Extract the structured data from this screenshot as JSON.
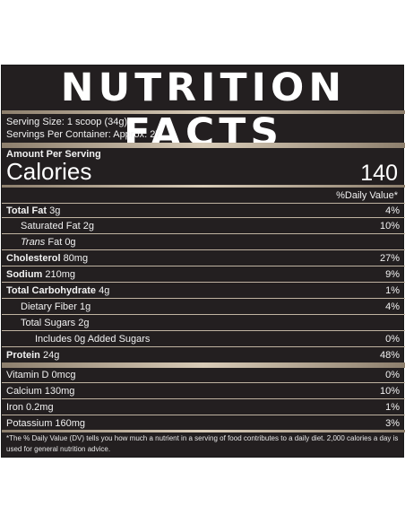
{
  "title": "NUTRITION FACTS",
  "serving_size": "Serving Size: 1 scoop (34g)",
  "servings_per_container": "Servings Per Container: Approx. 27",
  "amount_per_serving": "Amount Per Serving",
  "calories_label": "Calories",
  "calories_value": "140",
  "daily_value_header": "%Daily Value*",
  "nutrients": [
    {
      "name": "Total Fat",
      "amount": " 3g",
      "dv": "4%"
    },
    {
      "name": "Saturated Fat 2g",
      "dv": "10%"
    },
    {
      "name": "Trans",
      "amount": " Fat 0g",
      "dv": ""
    },
    {
      "name": "Cholesterol",
      "amount": " 80mg",
      "dv": "27%"
    },
    {
      "name": "Sodium",
      "amount": " 210mg",
      "dv": "9%"
    },
    {
      "name": "Total Carbohydrate",
      "amount": " 4g",
      "dv": "1%"
    },
    {
      "name": "Dietary Fiber 1g",
      "dv": "4%"
    },
    {
      "name": "Total Sugars 2g",
      "dv": ""
    },
    {
      "name": "Includes 0g Added Sugars",
      "dv": "0%"
    },
    {
      "name": "Protein",
      "amount": " 24g",
      "dv": "48%"
    }
  ],
  "vitamins": [
    {
      "name": "Vitamin D 0mcg",
      "dv": "0%"
    },
    {
      "name": "Calcium 130mg",
      "dv": "10%"
    },
    {
      "name": "Iron 0.2mg",
      "dv": "1%"
    },
    {
      "name": "Potassium 160mg",
      "dv": "3%"
    }
  ],
  "footnote": "*The % Daily Value (DV) tells you how much a nutrient in a serving of food contributes to a daily diet. 2,000 calories a day is used for general nutrition advice."
}
